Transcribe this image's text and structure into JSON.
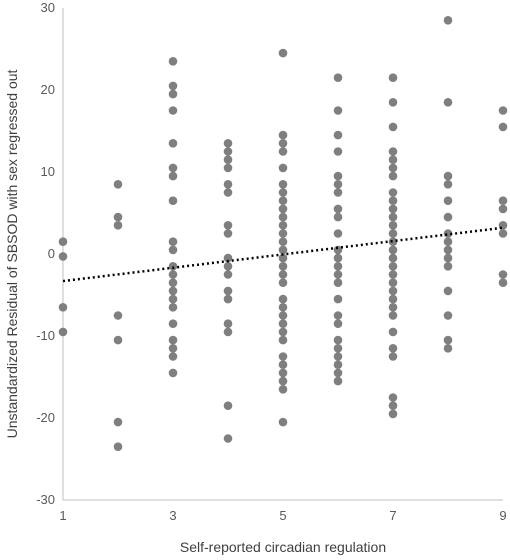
{
  "chart_data": {
    "type": "scatter",
    "xlabel": "Self-reported circadian regulation",
    "ylabel": "Unstandardized Residual of SBSOD with sex regressed out",
    "xlim": [
      1,
      9
    ],
    "ylim": [
      -30,
      30
    ],
    "x_ticks": [
      1,
      3,
      5,
      7,
      9
    ],
    "y_ticks": [
      30,
      20,
      10,
      0,
      -10,
      -20,
      -30
    ],
    "grid": false,
    "legend": "none",
    "point_color": "#7f7f7f",
    "trendline": {
      "style": "dotted",
      "color": "#000000",
      "x": [
        1,
        9
      ],
      "y": [
        -3.3,
        3.2
      ]
    },
    "points": [
      [
        1,
        1.5
      ],
      [
        1,
        -0.3
      ],
      [
        1,
        -6.5
      ],
      [
        1,
        -9.5
      ],
      [
        2,
        8.5
      ],
      [
        2,
        4.5
      ],
      [
        2,
        3.5
      ],
      [
        2,
        -7.5
      ],
      [
        2,
        -10.5
      ],
      [
        2,
        -20.5
      ],
      [
        2,
        -23.5
      ],
      [
        3,
        23.5
      ],
      [
        3,
        20.5
      ],
      [
        3,
        19.5
      ],
      [
        3,
        17.5
      ],
      [
        3,
        13.5
      ],
      [
        3,
        10.5
      ],
      [
        3,
        9.5
      ],
      [
        3,
        6.5
      ],
      [
        3,
        1.5
      ],
      [
        3,
        0.5
      ],
      [
        3,
        -1.5
      ],
      [
        3,
        -2.5
      ],
      [
        3,
        -3.5
      ],
      [
        3,
        -4.5
      ],
      [
        3,
        -5.5
      ],
      [
        3,
        -6.5
      ],
      [
        3,
        -8.5
      ],
      [
        3,
        -10.5
      ],
      [
        3,
        -11.5
      ],
      [
        3,
        -12.5
      ],
      [
        3,
        -14.5
      ],
      [
        4,
        13.5
      ],
      [
        4,
        12.5
      ],
      [
        4,
        11.5
      ],
      [
        4,
        10.5
      ],
      [
        4,
        8.5
      ],
      [
        4,
        7.5
      ],
      [
        4,
        3.5
      ],
      [
        4,
        2.5
      ],
      [
        4,
        -0.5
      ],
      [
        4,
        -1.5
      ],
      [
        4,
        -2.5
      ],
      [
        4,
        -4.5
      ],
      [
        4,
        -5.5
      ],
      [
        4,
        -8.5
      ],
      [
        4,
        -9.5
      ],
      [
        4,
        -18.5
      ],
      [
        4,
        -22.5
      ],
      [
        5,
        24.5
      ],
      [
        5,
        14.5
      ],
      [
        5,
        13.5
      ],
      [
        5,
        12.5
      ],
      [
        5,
        10.5
      ],
      [
        5,
        8.5
      ],
      [
        5,
        7.5
      ],
      [
        5,
        6.5
      ],
      [
        5,
        5.5
      ],
      [
        5,
        4.5
      ],
      [
        5,
        3.5
      ],
      [
        5,
        2.5
      ],
      [
        5,
        1.5
      ],
      [
        5,
        0.5
      ],
      [
        5,
        -0.5
      ],
      [
        5,
        -1.5
      ],
      [
        5,
        -2.5
      ],
      [
        5,
        -3.5
      ],
      [
        5,
        -5.5
      ],
      [
        5,
        -6.5
      ],
      [
        5,
        -7.5
      ],
      [
        5,
        -8.5
      ],
      [
        5,
        -9.5
      ],
      [
        5,
        -10.5
      ],
      [
        5,
        -12.5
      ],
      [
        5,
        -13.5
      ],
      [
        5,
        -14.5
      ],
      [
        5,
        -15.5
      ],
      [
        5,
        -16.5
      ],
      [
        5,
        -20.5
      ],
      [
        6,
        21.5
      ],
      [
        6,
        17.5
      ],
      [
        6,
        14.5
      ],
      [
        6,
        12.5
      ],
      [
        6,
        9.5
      ],
      [
        6,
        8.5
      ],
      [
        6,
        7.5
      ],
      [
        6,
        5.5
      ],
      [
        6,
        4.5
      ],
      [
        6,
        2.5
      ],
      [
        6,
        0.5
      ],
      [
        6,
        -0.5
      ],
      [
        6,
        -1.5
      ],
      [
        6,
        -2.5
      ],
      [
        6,
        -3.5
      ],
      [
        6,
        -5.5
      ],
      [
        6,
        -7.5
      ],
      [
        6,
        -8.5
      ],
      [
        6,
        -10.5
      ],
      [
        6,
        -11.5
      ],
      [
        6,
        -12.5
      ],
      [
        6,
        -13.5
      ],
      [
        6,
        -14.5
      ],
      [
        6,
        -15.5
      ],
      [
        7,
        21.5
      ],
      [
        7,
        18.5
      ],
      [
        7,
        15.5
      ],
      [
        7,
        12.5
      ],
      [
        7,
        11.5
      ],
      [
        7,
        10.5
      ],
      [
        7,
        9.5
      ],
      [
        7,
        7.5
      ],
      [
        7,
        6.5
      ],
      [
        7,
        5.5
      ],
      [
        7,
        4.5
      ],
      [
        7,
        3.5
      ],
      [
        7,
        2.5
      ],
      [
        7,
        1.5
      ],
      [
        7,
        0.5
      ],
      [
        7,
        -0.5
      ],
      [
        7,
        -1.5
      ],
      [
        7,
        -2.5
      ],
      [
        7,
        -3.5
      ],
      [
        7,
        -4.5
      ],
      [
        7,
        -5.5
      ],
      [
        7,
        -6.5
      ],
      [
        7,
        -7.5
      ],
      [
        7,
        -9.5
      ],
      [
        7,
        -11.5
      ],
      [
        7,
        -12.5
      ],
      [
        7,
        -17.5
      ],
      [
        7,
        -18.5
      ],
      [
        7,
        -19.5
      ],
      [
        8,
        28.5
      ],
      [
        8,
        18.5
      ],
      [
        8,
        9.5
      ],
      [
        8,
        8.5
      ],
      [
        8,
        6.5
      ],
      [
        8,
        4.5
      ],
      [
        8,
        2.5
      ],
      [
        8,
        1.5
      ],
      [
        8,
        0.5
      ],
      [
        8,
        -0.5
      ],
      [
        8,
        -1.5
      ],
      [
        8,
        -4.5
      ],
      [
        8,
        -7.5
      ],
      [
        8,
        -10.5
      ],
      [
        8,
        -11.5
      ],
      [
        9,
        17.5
      ],
      [
        9,
        15.5
      ],
      [
        9,
        6.5
      ],
      [
        9,
        5.5
      ],
      [
        9,
        3.5
      ],
      [
        9,
        2.5
      ],
      [
        9,
        -2.5
      ],
      [
        9,
        -3.5
      ]
    ]
  }
}
